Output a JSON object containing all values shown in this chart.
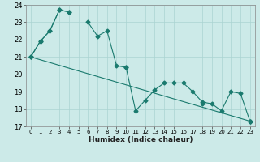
{
  "title": "",
  "xlabel": "Humidex (Indice chaleur)",
  "background_color": "#cceae8",
  "grid_color": "#aad4d2",
  "line_color": "#1a7a6e",
  "x_values": [
    0,
    1,
    2,
    3,
    4,
    5,
    6,
    7,
    8,
    9,
    10,
    11,
    12,
    13,
    14,
    15,
    16,
    17,
    18,
    19,
    20,
    21,
    22,
    23
  ],
  "line1": [
    21.0,
    21.9,
    22.5,
    23.7,
    23.6,
    null,
    23.0,
    22.2,
    22.5,
    20.5,
    20.4,
    17.9,
    18.5,
    19.1,
    19.5,
    19.5,
    19.5,
    19.0,
    18.4,
    18.3,
    17.9,
    19.0,
    18.9,
    17.3
  ],
  "line2": [
    21.0,
    21.9,
    22.5,
    23.7,
    23.6,
    null,
    null,
    null,
    null,
    null,
    20.4,
    null,
    null,
    null,
    null,
    null,
    null,
    null,
    18.3,
    null,
    null,
    null,
    null,
    17.3
  ],
  "line3_x": [
    0,
    23
  ],
  "line3_y": [
    21.0,
    17.3
  ],
  "ylim": [
    17.0,
    24.0
  ],
  "xlim": [
    -0.5,
    23.5
  ],
  "yticks": [
    17,
    18,
    19,
    20,
    21,
    22,
    23,
    24
  ],
  "xticks": [
    0,
    1,
    2,
    3,
    4,
    5,
    6,
    7,
    8,
    9,
    10,
    11,
    12,
    13,
    14,
    15,
    16,
    17,
    18,
    19,
    20,
    21,
    22,
    23
  ]
}
